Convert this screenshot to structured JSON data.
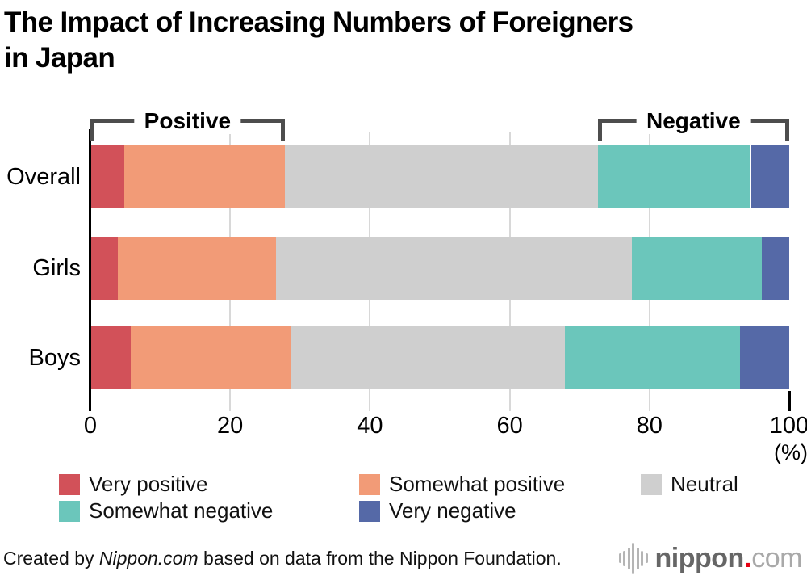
{
  "title": {
    "line1": "The Impact of Increasing Numbers of Foreigners",
    "line2": "in Japan"
  },
  "chart_data": {
    "type": "bar",
    "stacked": true,
    "orientation": "horizontal",
    "title": "The Impact of Increasing Numbers of Foreigners in Japan",
    "categories": [
      "Overall",
      "Girls",
      "Boys"
    ],
    "series": [
      {
        "name": "Very positive",
        "color": "#d25159",
        "values": [
          4.9,
          3.9,
          5.8
        ]
      },
      {
        "name": "Somewhat positive",
        "color": "#f29b77",
        "values": [
          22.9,
          22.7,
          23.0
        ]
      },
      {
        "name": "Neutral",
        "color": "#cfcfcf",
        "values": [
          44.8,
          50.9,
          39.1
        ]
      },
      {
        "name": "Somewhat negative",
        "color": "#6bc6bb",
        "values": [
          21.8,
          18.6,
          25.1
        ]
      },
      {
        "name": "Very negative",
        "color": "#5569a7",
        "values": [
          5.6,
          3.9,
          7.0
        ]
      }
    ],
    "xlim": [
      0,
      100
    ],
    "x_ticks": [
      0,
      20,
      40,
      60,
      80,
      100
    ],
    "x_unit": "(%)",
    "grid": "light vertical gridlines at 20, 40, 60, 80",
    "legend_position": "bottom",
    "annotations": [
      {
        "label": "Positive",
        "span_pct": [
          0,
          27.8
        ]
      },
      {
        "label": "Negative",
        "span_pct": [
          72.6,
          100
        ]
      }
    ]
  },
  "axis": {
    "tick_labels": [
      "0",
      "20",
      "40",
      "60",
      "80",
      "100"
    ],
    "unit_label": "(%)"
  },
  "footer": {
    "credit_prefix": "Created by ",
    "credit_source": "Nippon.com",
    "credit_suffix": " based on data from the Nippon Foundation.",
    "logo": {
      "name": "nippon",
      "dot": ".",
      "tld": "com"
    }
  }
}
